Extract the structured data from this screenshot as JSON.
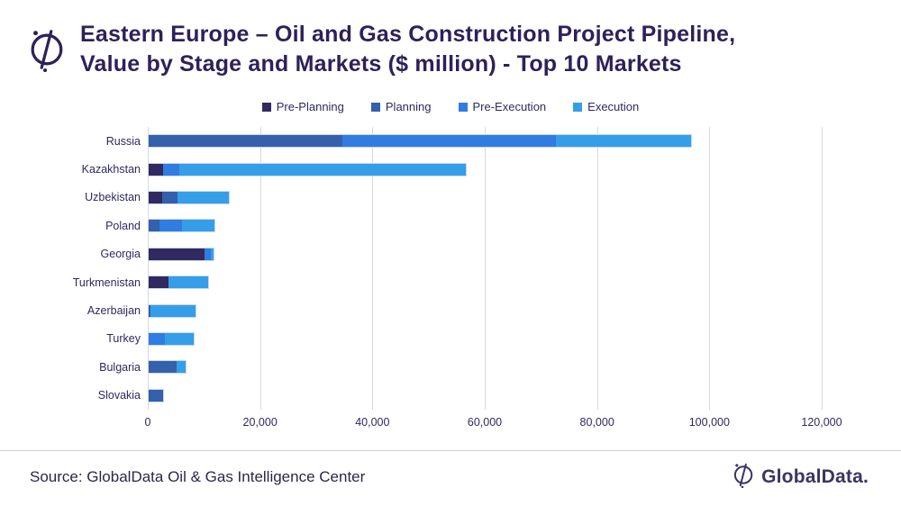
{
  "header": {
    "title_line1": "Eastern Europe – Oil and Gas Construction Project Pipeline,",
    "title_line2": "Value by Stage and Markets ($ million) - Top 10 Markets"
  },
  "footer": {
    "source": "Source: GlobalData Oil & Gas Intelligence Center",
    "brand": "GlobalData."
  },
  "colors": {
    "title": "#2e2159",
    "text": "#2e2a5e",
    "gridline": "#d9d9d9",
    "pre_planning": "#322960",
    "planning": "#3560ab",
    "pre_execution": "#307ce0",
    "execution": "#359ee9"
  },
  "chart_data": {
    "type": "bar",
    "orientation": "horizontal",
    "stacked": true,
    "title": "Eastern Europe – Oil and Gas Construction Project Pipeline, Value by Stage and Markets ($ million) - Top 10 Markets",
    "legend_position": "top",
    "grid": "vertical",
    "xlim": [
      0,
      120000
    ],
    "xticks": [
      0,
      20000,
      40000,
      60000,
      80000,
      100000,
      120000
    ],
    "xtick_labels": [
      "0",
      "20,000",
      "40,000",
      "60,000",
      "80,000",
      "100,000",
      "120,000"
    ],
    "categories": [
      "Russia",
      "Kazakhstan",
      "Uzbekistan",
      "Poland",
      "Georgia",
      "Turkmenistan",
      "Azerbaijan",
      "Turkey",
      "Bulgaria",
      "Slovakia"
    ],
    "series": [
      {
        "name": "Pre-Planning",
        "color": "#322960",
        "values": [
          0,
          2500,
          2400,
          0,
          10000,
          3500,
          0,
          0,
          0,
          0
        ]
      },
      {
        "name": "Planning",
        "color": "#3560ab",
        "values": [
          34500,
          0,
          2800,
          1900,
          0,
          0,
          300,
          0,
          4900,
          2500
        ]
      },
      {
        "name": "Pre-Execution",
        "color": "#307ce0",
        "values": [
          38000,
          3000,
          0,
          4100,
          1100,
          0,
          0,
          2900,
          0,
          0
        ]
      },
      {
        "name": "Execution",
        "color": "#359ee9",
        "values": [
          24000,
          51000,
          9100,
          5700,
          400,
          7100,
          8100,
          5100,
          1700,
          0
        ]
      }
    ],
    "totals": [
      96500,
      56500,
      14300,
      11700,
      11500,
      10600,
      8400,
      8000,
      6600,
      2500
    ]
  }
}
